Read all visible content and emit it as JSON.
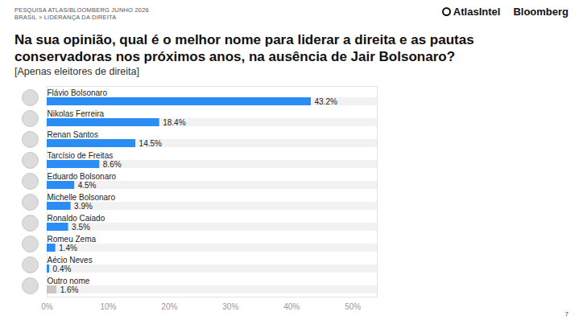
{
  "header": {
    "source_line": "PESQUISA ATLAS/BLOOMBERG JUNHO 2026",
    "breadcrumb": "BRASIL > LIDERANÇA DA DIREITA",
    "logos": [
      "AtlasIntel",
      "Bloomberg"
    ]
  },
  "footer": {
    "page_number": "7"
  },
  "chart_data": {
    "type": "bar",
    "orientation": "horizontal",
    "title": "Na sua opinião, qual é o melhor nome para liderar a direita e as pautas conservadoras nos próximos anos, na ausência de Jair Bolsonaro?",
    "subtitle": "[Apenas eleitores de direita]",
    "categories": [
      "Flávio Bolsonaro",
      "Nikolas Ferreira",
      "Renan Santos",
      "Tarcísio de Freitas",
      "Eduardo Bolsonaro",
      "Michelle Bolsonaro",
      "Ronaldo Caiado",
      "Romeu Zema",
      "Aécio Neves",
      "Outro nome"
    ],
    "values": [
      43.2,
      18.4,
      14.5,
      8.6,
      4.5,
      3.9,
      3.5,
      1.4,
      0.4,
      1.6
    ],
    "value_labels": [
      "43.2%",
      "18.4%",
      "14.5%",
      "8.6%",
      "4.5%",
      "3.9%",
      "3.5%",
      "1.4%",
      "0.4%",
      "1.6%"
    ],
    "colors": [
      "#2b8cf3",
      "#2b8cf3",
      "#2b8cf3",
      "#2b8cf3",
      "#2b8cf3",
      "#2b8cf3",
      "#2b8cf3",
      "#2b8cf3",
      "#2b8cf3",
      "#c9c5c1"
    ],
    "xlim": [
      0,
      54
    ],
    "xticks": [
      {
        "value": 0,
        "label": "0%"
      },
      {
        "value": 10,
        "label": "10%"
      },
      {
        "value": 20,
        "label": "20%"
      },
      {
        "value": 30,
        "label": "30%"
      },
      {
        "value": 40,
        "label": "40%"
      },
      {
        "value": 50,
        "label": "50%"
      }
    ],
    "data_labels": true,
    "grid": false
  }
}
